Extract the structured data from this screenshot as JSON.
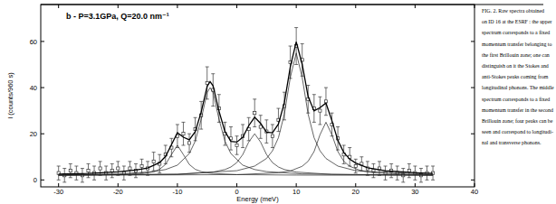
{
  "chart_data": {
    "type": "scatter",
    "annotation": "b - P=3.1GPa, Q=20.0 nm⁻¹",
    "x_label": "Energy (meV)",
    "y_label": "I (counts/960 s)",
    "caption": [
      "FIG. 2. Raw spectra obtained",
      "on ID 16 at the ESRF : the upper",
      "spectrum corresponds to a fixed",
      "momentum transfer belonging to",
      "the first Brillouin zone; one can",
      "distinguish on it the Stokes and",
      "anti-Stokes peaks coming from",
      "longitudinal phonons. The middle",
      "spectrum corresponds to a fixed",
      "momentum transfer in the second",
      "Brillouin zone; four peaks can be",
      "seen and correspond to longitudi-",
      "nal and transverse phonons."
    ],
    "xlim": [
      -33,
      40
    ],
    "xticks": [
      -30,
      -20,
      -10,
      0,
      10,
      20,
      30,
      40
    ],
    "ylim": [
      -3,
      76
    ],
    "yticks": [
      0,
      20,
      40,
      60
    ],
    "series": [
      {
        "type": "scatter",
        "marker": "square",
        "color": "#333333",
        "x": [
          -30,
          -29,
          -28,
          -27,
          -26,
          -25,
          -24,
          -23,
          -22,
          -21,
          -20,
          -19,
          -18,
          -17,
          -16,
          -15,
          -14,
          -13,
          -12,
          -11,
          -10,
          -9,
          -8,
          -7,
          -6,
          -5,
          -4,
          -3,
          -2,
          -1,
          0,
          1,
          2,
          3,
          4,
          5,
          6,
          7,
          8,
          9,
          10,
          11,
          12,
          13,
          14,
          15,
          16,
          17,
          18,
          19,
          20,
          21,
          22,
          23,
          24,
          25,
          26,
          27,
          28,
          29,
          30,
          31,
          32,
          33
        ],
        "values": [
          3,
          2,
          4,
          3,
          2,
          4,
          3,
          5,
          3,
          4,
          5,
          3,
          5,
          4,
          6,
          5,
          8,
          7,
          11,
          14,
          19,
          20,
          16,
          22,
          28,
          42,
          39,
          31,
          20,
          18,
          15,
          19,
          22,
          29,
          23,
          21,
          19,
          26,
          32,
          51,
          58,
          52,
          35,
          31,
          30,
          34,
          24,
          18,
          11,
          10,
          6,
          7,
          5,
          4,
          5,
          3,
          4,
          3,
          2,
          4,
          3,
          2,
          3,
          3
        ],
        "error": [
          3,
          3,
          3,
          3,
          3,
          3,
          3,
          3,
          3,
          3,
          3,
          3,
          3,
          3,
          3,
          3,
          4,
          4,
          4,
          4,
          5,
          5,
          4,
          5,
          6,
          7,
          7,
          6,
          5,
          5,
          4,
          5,
          5,
          6,
          5,
          5,
          5,
          5,
          6,
          7,
          8,
          7,
          6,
          6,
          6,
          6,
          5,
          5,
          4,
          4,
          3,
          3,
          3,
          3,
          3,
          3,
          3,
          3,
          3,
          3,
          3,
          3,
          3,
          3
        ]
      },
      {
        "type": "line",
        "line_style": "solid",
        "color": "#000000",
        "x": [
          -30,
          -25,
          -20,
          -17,
          -15,
          -13,
          -12,
          -11,
          -10,
          -9,
          -8,
          -7,
          -6,
          -5,
          -4.5,
          -4,
          -3,
          -2,
          -1,
          0,
          1,
          2,
          3,
          4,
          5,
          6,
          7,
          8,
          9,
          10,
          11,
          12,
          13,
          14,
          15,
          16,
          17,
          18,
          19,
          20,
          22,
          25,
          30,
          33
        ],
        "values": [
          2.5,
          2.8,
          3.5,
          4.3,
          5.2,
          7.5,
          10.2,
          15.3,
          20.5,
          18.5,
          17.4,
          20.9,
          29.4,
          40.5,
          42.6,
          40.8,
          29.8,
          21.0,
          16.7,
          16.4,
          18.5,
          23.5,
          27.2,
          24.5,
          20.7,
          20.4,
          24.2,
          33.5,
          49,
          59.8,
          50.1,
          36.1,
          29.9,
          31.3,
          33.3,
          25.7,
          17.1,
          11.9,
          9.0,
          7.3,
          5.3,
          4.0,
          3.1,
          2.8
        ]
      },
      {
        "type": "line",
        "line_style": "thin",
        "color": "#222222",
        "x": [
          -30,
          -20,
          -16,
          -15,
          -14,
          -13,
          -12,
          -11,
          -10,
          -9,
          -8,
          -7,
          -6,
          -5,
          -4,
          0,
          10,
          33
        ],
        "values": [
          2.1,
          2.3,
          2.8,
          3.1,
          3.6,
          4.6,
          6.7,
          11.0,
          15,
          11.0,
          6.7,
          4.6,
          3.6,
          3.1,
          2.8,
          2.3,
          2.1,
          2.0
        ]
      },
      {
        "type": "line",
        "line_style": "thin",
        "color": "#222222",
        "x": [
          -30,
          -20,
          -14,
          -12,
          -10,
          -8,
          -7,
          -6,
          -5,
          -4.5,
          -4,
          -3,
          -2,
          -1,
          1,
          3,
          5,
          11,
          20,
          33
        ],
        "values": [
          2.2,
          2.6,
          3.6,
          4.5,
          6.4,
          11.4,
          16.8,
          26.3,
          37.8,
          40,
          37.8,
          26.3,
          16.8,
          11.4,
          6.4,
          4.5,
          3.6,
          2.6,
          2.3,
          2.1
        ]
      },
      {
        "type": "line",
        "line_style": "thin",
        "color": "#222222",
        "x": [
          -30,
          -10,
          -4,
          -2,
          -1,
          0,
          1,
          2,
          3,
          4,
          5,
          6,
          7,
          8,
          10,
          16,
          33
        ],
        "values": [
          2.1,
          2.4,
          3.4,
          4.5,
          5.6,
          7.5,
          11,
          16.4,
          20,
          16.4,
          11,
          7.5,
          5.6,
          4.5,
          3.4,
          2.4,
          2.1
        ]
      },
      {
        "type": "line",
        "line_style": "thin",
        "color": "#222222",
        "x": [
          -30,
          -10,
          0,
          3,
          5,
          6,
          7,
          8,
          9,
          10,
          11,
          12,
          13,
          14,
          15,
          17,
          20,
          33
        ],
        "values": [
          2.1,
          2.5,
          4.0,
          6.0,
          9.3,
          12.6,
          18.3,
          28.5,
          44.4,
          55,
          44.4,
          28.5,
          18.3,
          12.6,
          9.3,
          6.0,
          4.0,
          2.4
        ]
      },
      {
        "type": "line",
        "line_style": "thin",
        "color": "#222222",
        "x": [
          -30,
          0,
          7,
          9,
          11,
          12,
          13,
          14,
          15,
          16,
          17,
          18,
          19,
          21,
          23,
          30,
          33
        ],
        "values": [
          2.0,
          2.3,
          3.1,
          3.9,
          5.9,
          8.1,
          12.3,
          19.6,
          25,
          19.6,
          12.3,
          8.1,
          5.9,
          3.9,
          3.1,
          2.3,
          2.2
        ]
      }
    ]
  }
}
